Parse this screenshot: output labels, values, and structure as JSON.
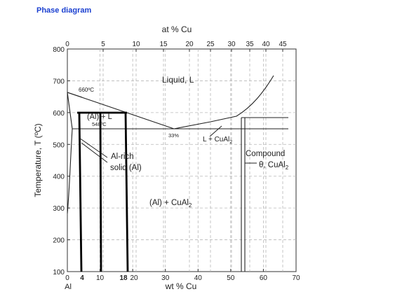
{
  "header": {
    "title": "Phase diagram"
  },
  "colors": {
    "title": "#1a3fd0",
    "ink": "#222222",
    "grid": "#b8b8b8"
  },
  "chart_data": {
    "type": "phase-diagram",
    "top_axis": {
      "label": "at % Cu",
      "ticks": [
        "0",
        "5",
        "10",
        "15",
        "20",
        "25",
        "30",
        "35",
        "40",
        "45"
      ]
    },
    "bottom_axis": {
      "label": "wt % Cu",
      "ticks": [
        "0",
        "10",
        "20",
        "30",
        "40",
        "50",
        "60",
        "70"
      ],
      "extra_ticks": [
        "4",
        "18"
      ],
      "origin_label": "Al",
      "xlim": [
        0,
        70
      ]
    },
    "left_axis": {
      "label": "Temperature, T (ºC)",
      "ticks": [
        "100",
        "200",
        "300",
        "400",
        "500",
        "600",
        "700",
        "800"
      ],
      "ylim": [
        100,
        800
      ]
    },
    "grid": true,
    "annotations": {
      "melting": "660ºC",
      "eutectic_temp": "548ºC",
      "eutectic_comp": "33%",
      "liquid": "Liquid, L",
      "al_plus_l": "(Al) + L",
      "l_plus_cual2": "L + CuAl",
      "l_plus_cual2_sub": "2",
      "al_rich_1": "Al-rich",
      "al_rich_2": "solid (Al)",
      "two_phase": "(Al) + CuAl",
      "two_phase_sub": "2",
      "compound_1": "Compound",
      "compound_2": "θ, CuAl",
      "compound_2_sub": "2"
    },
    "key_points": {
      "al_melting": {
        "x": 0,
        "y": 660
      },
      "eutectic": {
        "x": 33,
        "y": 548
      },
      "max_solubility": {
        "x": 5.65,
        "y": 548
      },
      "compound_range": [
        53,
        54
      ]
    },
    "highlighted_compositions": [
      4,
      10,
      18
    ]
  }
}
